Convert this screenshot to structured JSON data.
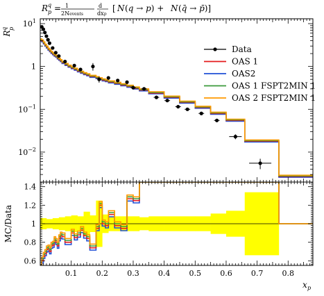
{
  "chart_data": {
    "type": "line",
    "title": "R_p^q = 1/(2N_events) dN/dx_p [N(q → p) + N(q̄ → p̄)]",
    "main": {
      "ylabel": "R_p^q",
      "scale": "log",
      "ylim": [
        0.002,
        13
      ],
      "ytick_values": [
        0.01,
        0.1,
        1,
        10
      ],
      "ytick_labels": [
        "10^-2",
        "10^-1",
        "1",
        "10^1"
      ]
    },
    "ratio": {
      "ylabel": "MC/Data",
      "ylim": [
        0.55,
        1.45
      ],
      "ytick_values": [
        0.6,
        0.8,
        1.0,
        1.2,
        1.4
      ],
      "ytick_labels": [
        "0.6",
        "0.8",
        "1",
        "1.2",
        "1.4"
      ]
    },
    "xlabel": "x_p",
    "xlim": [
      0.0,
      0.88
    ],
    "xtick_values": [
      0.1,
      0.2,
      0.3,
      0.4,
      0.5,
      0.6,
      0.7,
      0.8
    ],
    "xtick_labels": [
      "0.1",
      "0.2",
      "0.3",
      "0.4",
      "0.5",
      "0.6",
      "0.7",
      "0.8"
    ],
    "grid": false,
    "legend_position": "top-right",
    "legend": [
      {
        "name": "Data",
        "color": "#000000",
        "marker": "dot"
      },
      {
        "name": "OAS 1",
        "color": "#e41a1c"
      },
      {
        "name": "OAS2",
        "color": "#1f4fd6"
      },
      {
        "name": "OAS 1 FSPT2MIN 1",
        "color": "#3a9a3a"
      },
      {
        "name": "OAS 2 FSPT2MIN 1",
        "color": "#ff9900"
      }
    ],
    "data": [
      {
        "x": 0.005,
        "y": 8.4,
        "err": 0.6
      },
      {
        "x": 0.01,
        "y": 7.4,
        "err": 0.5
      },
      {
        "x": 0.015,
        "y": 6.2,
        "err": 0.4
      },
      {
        "x": 0.02,
        "y": 5.1,
        "err": 0.35
      },
      {
        "x": 0.025,
        "y": 4.2,
        "err": 0.3
      },
      {
        "x": 0.03,
        "y": 3.5,
        "err": 0.25
      },
      {
        "x": 0.04,
        "y": 2.7,
        "err": 0.2
      },
      {
        "x": 0.05,
        "y": 2.1,
        "err": 0.15
      },
      {
        "x": 0.06,
        "y": 1.75,
        "err": 0.13
      },
      {
        "x": 0.08,
        "y": 1.3,
        "err": 0.1
      },
      {
        "x": 0.11,
        "y": 1.05,
        "err": 0.1
      },
      {
        "x": 0.13,
        "y": 0.85,
        "err": 0.08
      },
      {
        "x": 0.17,
        "y": 1.0,
        "err": 0.2
      },
      {
        "x": 0.19,
        "y": 0.5,
        "err": 0.08
      },
      {
        "x": 0.22,
        "y": 0.54,
        "err": 0.04
      },
      {
        "x": 0.25,
        "y": 0.47,
        "err": 0.04
      },
      {
        "x": 0.28,
        "y": 0.43,
        "err": 0.03
      },
      {
        "x": 0.3,
        "y": 0.32,
        "err": 0.025
      },
      {
        "x": 0.335,
        "y": 0.3,
        "err": 0.02
      },
      {
        "x": 0.375,
        "y": 0.19,
        "err": 0.015
      },
      {
        "x": 0.41,
        "y": 0.16,
        "err": 0.012
      },
      {
        "x": 0.445,
        "y": 0.115,
        "err": 0.009
      },
      {
        "x": 0.475,
        "y": 0.1,
        "err": 0.008
      },
      {
        "x": 0.52,
        "y": 0.08,
        "err": 0.006
      },
      {
        "x": 0.57,
        "y": 0.055,
        "err": 0.005
      },
      {
        "x": 0.63,
        "y": 0.023,
        "err": 0.003
      },
      {
        "x": 0.71,
        "y": 0.0055,
        "err": 0.0015
      }
    ],
    "mc_edges": [
      0.0,
      0.005,
      0.01,
      0.015,
      0.02,
      0.025,
      0.03,
      0.035,
      0.04,
      0.045,
      0.05,
      0.055,
      0.06,
      0.065,
      0.07,
      0.08,
      0.09,
      0.1,
      0.11,
      0.12,
      0.13,
      0.14,
      0.15,
      0.16,
      0.18,
      0.19,
      0.2,
      0.21,
      0.22,
      0.24,
      0.26,
      0.28,
      0.3,
      0.32,
      0.35,
      0.4,
      0.45,
      0.5,
      0.55,
      0.6,
      0.66,
      0.77,
      0.88
    ],
    "mc_values": [
      4.1,
      3.9,
      3.5,
      3.1,
      2.8,
      2.5,
      2.3,
      2.1,
      1.95,
      1.8,
      1.7,
      1.55,
      1.45,
      1.35,
      1.22,
      1.1,
      1.0,
      0.92,
      0.85,
      0.78,
      0.72,
      0.67,
      0.63,
      0.58,
      0.54,
      0.51,
      0.48,
      0.46,
      0.43,
      0.4,
      0.37,
      0.34,
      0.31,
      0.28,
      0.24,
      0.19,
      0.145,
      0.11,
      0.08,
      0.055,
      0.018,
      0.0027
    ],
    "mc_offsets": {
      "OAS 1": 1.0,
      "OAS2": 0.96,
      "OAS 1 FSPT2MIN 1": 1.03,
      "OAS 2 FSPT2MIN 1": 1.07
    },
    "ratio_values": [
      0.5,
      0.6,
      0.65,
      0.68,
      0.72,
      0.73,
      0.7,
      0.76,
      0.77,
      0.82,
      0.8,
      0.76,
      0.84,
      0.87,
      0.86,
      0.8,
      0.8,
      0.9,
      0.85,
      0.88,
      0.93,
      0.87,
      0.84,
      0.74,
      0.95,
      1.2,
      1.0,
      0.98,
      1.1,
      0.98,
      0.95,
      1.27,
      1.25,
      1.45,
      1.45,
      1.45,
      1.45,
      1.45,
      1.45,
      1.45,
      1.45,
      1.45
    ],
    "ratio_offsets": {
      "OAS 1": 0.0,
      "OAS2": -0.025,
      "OAS 1 FSPT2MIN 1": 0.02,
      "OAS 2 FSPT2MIN 1": 0.04
    },
    "uncertainty_band": {
      "color": "#ffff00",
      "edges": [
        0.0,
        0.02,
        0.04,
        0.06,
        0.08,
        0.1,
        0.12,
        0.14,
        0.16,
        0.18,
        0.2,
        0.22,
        0.24,
        0.26,
        0.28,
        0.3,
        0.32,
        0.35,
        0.4,
        0.45,
        0.5,
        0.55,
        0.6,
        0.66,
        0.77
      ],
      "half_widths": [
        0.06,
        0.05,
        0.06,
        0.07,
        0.08,
        0.09,
        0.08,
        0.13,
        0.09,
        0.25,
        0.1,
        0.08,
        0.08,
        0.08,
        0.08,
        0.08,
        0.07,
        0.08,
        0.08,
        0.08,
        0.08,
        0.11,
        0.14,
        0.34
      ]
    }
  }
}
